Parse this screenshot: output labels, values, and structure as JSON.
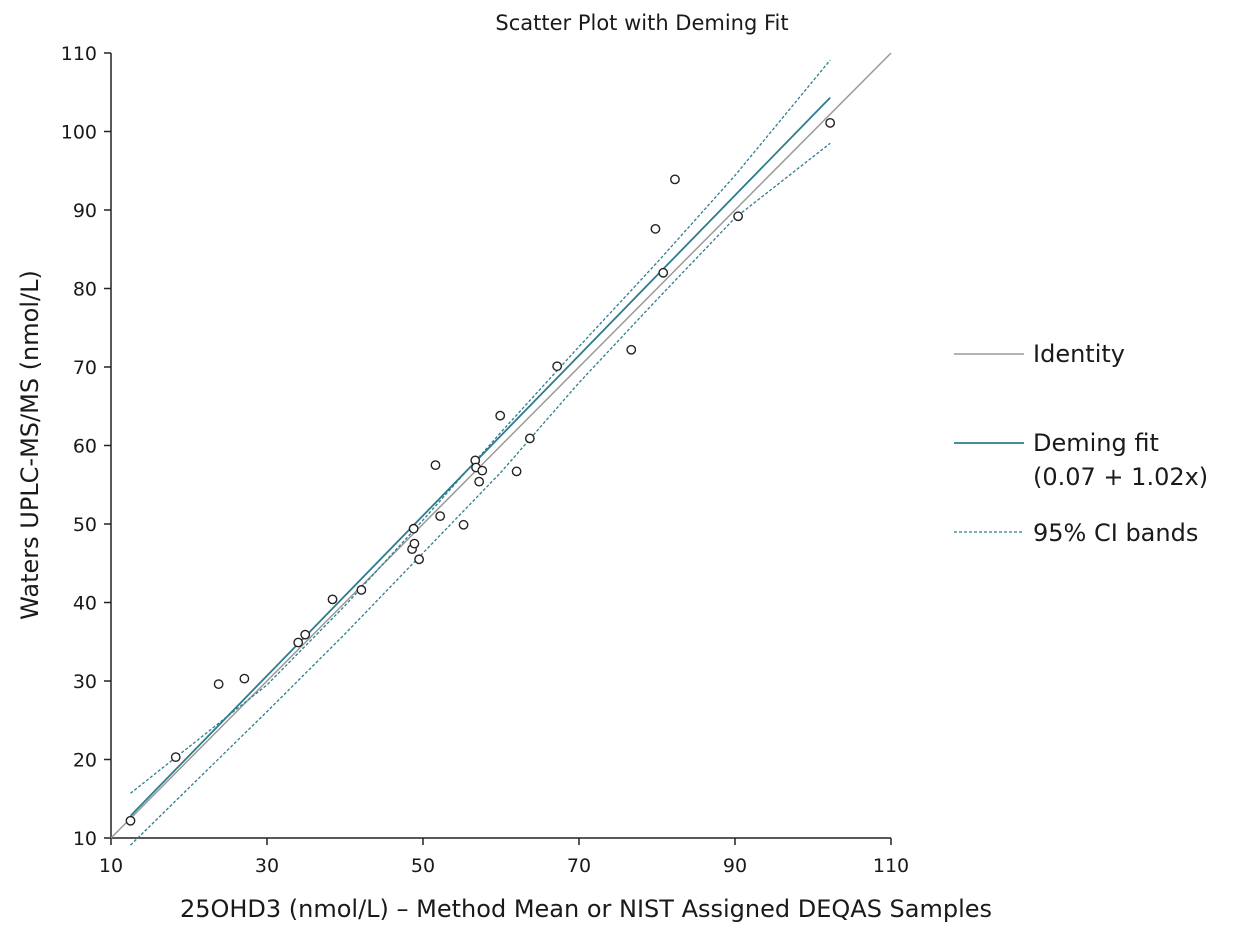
{
  "chart_data": {
    "type": "scatter",
    "title": "Scatter Plot with Deming Fit",
    "xlabel": "25OHD3 (nmol/L) – Method Mean or NIST Assigned DEQAS Samples",
    "ylabel": "Waters UPLC-MS/MS (nmol/L)",
    "xlim": [
      10,
      110
    ],
    "ylim": [
      10,
      110
    ],
    "x_ticks": [
      10,
      30,
      50,
      70,
      90,
      110
    ],
    "y_ticks": [
      10,
      20,
      30,
      40,
      50,
      60,
      70,
      80,
      90,
      100,
      110
    ],
    "x_tick_labels": [
      "10",
      "30",
      "50",
      "70",
      "90",
      "110"
    ],
    "y_tick_labels": [
      "10",
      "20",
      "30",
      "40",
      "50",
      "60",
      "70",
      "80",
      "90",
      "100",
      "110"
    ],
    "points": [
      {
        "x": 12.5,
        "y": 12.2
      },
      {
        "x": 18.3,
        "y": 20.3
      },
      {
        "x": 23.8,
        "y": 29.6
      },
      {
        "x": 27.1,
        "y": 30.3
      },
      {
        "x": 34.0,
        "y": 34.9
      },
      {
        "x": 34.9,
        "y": 35.9
      },
      {
        "x": 38.4,
        "y": 40.4
      },
      {
        "x": 42.1,
        "y": 41.6
      },
      {
        "x": 48.6,
        "y": 46.8
      },
      {
        "x": 48.9,
        "y": 47.5
      },
      {
        "x": 48.8,
        "y": 49.4
      },
      {
        "x": 49.5,
        "y": 45.5
      },
      {
        "x": 51.6,
        "y": 57.5
      },
      {
        "x": 52.2,
        "y": 51.0
      },
      {
        "x": 55.2,
        "y": 49.9
      },
      {
        "x": 56.7,
        "y": 58.1
      },
      {
        "x": 56.8,
        "y": 57.2
      },
      {
        "x": 57.2,
        "y": 55.4
      },
      {
        "x": 57.6,
        "y": 56.8
      },
      {
        "x": 59.9,
        "y": 63.8
      },
      {
        "x": 62.0,
        "y": 56.7
      },
      {
        "x": 63.7,
        "y": 60.9
      },
      {
        "x": 67.2,
        "y": 70.1
      },
      {
        "x": 76.7,
        "y": 72.2
      },
      {
        "x": 79.8,
        "y": 87.6
      },
      {
        "x": 80.8,
        "y": 82.0
      },
      {
        "x": 82.3,
        "y": 93.9
      },
      {
        "x": 90.4,
        "y": 89.2
      },
      {
        "x": 102.2,
        "y": 101.1
      }
    ],
    "lines": {
      "identity": {
        "x": [
          10,
          110
        ],
        "y": [
          10,
          110
        ]
      },
      "deming": {
        "intercept": 0.07,
        "slope": 1.02,
        "x_range": [
          12.5,
          102.2
        ]
      },
      "ci_upper": {
        "x": [
          12.5,
          20,
          30,
          40,
          50,
          60,
          70,
          80,
          90,
          102.2
        ],
        "y": [
          15.7,
          21.6,
          29.5,
          39.6,
          50.5,
          61.7,
          72.6,
          83.3,
          94.4,
          109.1
        ]
      },
      "ci_lower": {
        "x": [
          12.5,
          20,
          30,
          40,
          50,
          60,
          70,
          80,
          90,
          102.2
        ],
        "y": [
          9.1,
          16.4,
          26.1,
          36.0,
          46.3,
          56.6,
          68.0,
          78.6,
          89.0,
          98.5
        ]
      }
    },
    "legend": {
      "position": "right",
      "entries": [
        {
          "label": "Identity",
          "style": "solid",
          "color": "#9a9a9a"
        },
        {
          "label": "Deming fit",
          "label2": "(0.07 + 1.02x)",
          "style": "solid",
          "color": "#2e7d8e"
        },
        {
          "label": "95% CI bands",
          "style": "dashed",
          "color": "#2e7d8e"
        }
      ]
    }
  }
}
